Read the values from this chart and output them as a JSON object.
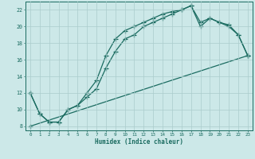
{
  "xlabel": "Humidex (Indice chaleur)",
  "bg_color": "#cce8e8",
  "line_color": "#1a6b60",
  "grid_color": "#aacccc",
  "line1_x": [
    0,
    1,
    2,
    3,
    4,
    5,
    6,
    7,
    8,
    9,
    10,
    11,
    12,
    13,
    14,
    15,
    16,
    17,
    18,
    19,
    20,
    21,
    22,
    23
  ],
  "line1_y": [
    12,
    9.5,
    8.5,
    8.5,
    10,
    10.5,
    12,
    13.5,
    16.5,
    18.5,
    19.5,
    20,
    20.5,
    21,
    21.5,
    21.8,
    22,
    22.5,
    20.5,
    21.0,
    20.5,
    20.2,
    19.0,
    16.5
  ],
  "line2_x": [
    0,
    1,
    2,
    3,
    4,
    5,
    6,
    7,
    8,
    9,
    10,
    11,
    12,
    13,
    14,
    15,
    16,
    17,
    18,
    19,
    20,
    21,
    22,
    23
  ],
  "line2_y": [
    12,
    9.5,
    8.5,
    8.5,
    10,
    10.5,
    11.5,
    12.5,
    15.0,
    17.0,
    18.5,
    19.0,
    20.0,
    20.5,
    21.0,
    21.5,
    22.0,
    22.5,
    20.0,
    21.0,
    20.5,
    20.0,
    19.0,
    16.5
  ],
  "line3_x": [
    0,
    23
  ],
  "line3_y": [
    8,
    16.5
  ],
  "xlim": [
    -0.5,
    23.5
  ],
  "ylim": [
    7.5,
    23.0
  ],
  "yticks": [
    8,
    10,
    12,
    14,
    16,
    18,
    20,
    22
  ],
  "xticks": [
    0,
    1,
    2,
    3,
    4,
    5,
    6,
    7,
    8,
    9,
    10,
    11,
    12,
    13,
    14,
    15,
    16,
    17,
    18,
    19,
    20,
    21,
    22,
    23
  ]
}
